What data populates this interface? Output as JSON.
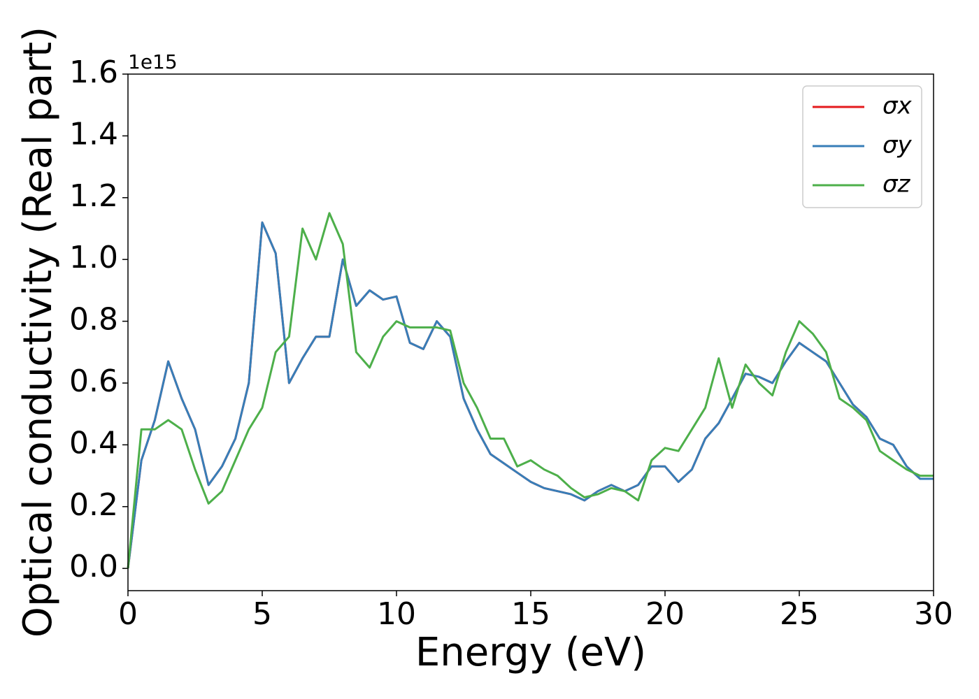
{
  "chart_data": {
    "type": "line",
    "xlabel": "Energy (eV)",
    "ylabel": "Optical conductivity (Real part)",
    "y_offset_label": "1e15",
    "x": [
      0,
      0.5,
      1,
      1.5,
      2,
      2.5,
      3,
      3.5,
      4,
      4.5,
      5,
      5.5,
      6,
      6.5,
      7,
      7.5,
      8,
      8.5,
      9,
      9.5,
      10,
      10.5,
      11,
      11.5,
      12,
      12.5,
      13,
      13.5,
      14,
      14.5,
      15,
      15.5,
      16,
      16.5,
      17,
      17.5,
      18,
      18.5,
      19,
      19.5,
      20,
      20.5,
      21,
      21.5,
      22,
      22.5,
      23,
      23.5,
      24,
      24.5,
      25,
      25.5,
      26,
      26.5,
      27,
      27.5,
      28,
      28.5,
      29,
      29.5,
      30
    ],
    "series": [
      {
        "name": "σx",
        "color": "#e41a1c",
        "values": [
          0,
          0.35,
          0.48,
          0.67,
          0.55,
          0.45,
          0.27,
          0.33,
          0.42,
          0.6,
          1.12,
          1.02,
          0.6,
          0.68,
          0.75,
          0.75,
          1.0,
          0.85,
          0.9,
          0.87,
          0.88,
          0.73,
          0.71,
          0.8,
          0.75,
          0.55,
          0.45,
          0.37,
          0.34,
          0.31,
          0.28,
          0.26,
          0.25,
          0.24,
          0.22,
          0.25,
          0.27,
          0.25,
          0.27,
          0.33,
          0.33,
          0.28,
          0.32,
          0.42,
          0.47,
          0.55,
          0.63,
          0.62,
          0.6,
          0.67,
          0.73,
          0.7,
          0.67,
          0.6,
          0.53,
          0.49,
          0.42,
          0.4,
          0.33,
          0.29,
          0.29
        ]
      },
      {
        "name": "σy",
        "color": "#377eb8",
        "values": [
          0,
          0.35,
          0.48,
          0.67,
          0.55,
          0.45,
          0.27,
          0.33,
          0.42,
          0.6,
          1.12,
          1.02,
          0.6,
          0.68,
          0.75,
          0.75,
          1.0,
          0.85,
          0.9,
          0.87,
          0.88,
          0.73,
          0.71,
          0.8,
          0.75,
          0.55,
          0.45,
          0.37,
          0.34,
          0.31,
          0.28,
          0.26,
          0.25,
          0.24,
          0.22,
          0.25,
          0.27,
          0.25,
          0.27,
          0.33,
          0.33,
          0.28,
          0.32,
          0.42,
          0.47,
          0.55,
          0.63,
          0.62,
          0.6,
          0.67,
          0.73,
          0.7,
          0.67,
          0.6,
          0.53,
          0.49,
          0.42,
          0.4,
          0.33,
          0.29,
          0.29
        ]
      },
      {
        "name": "σz",
        "color": "#4daf4a",
        "values": [
          0,
          0.45,
          0.45,
          0.48,
          0.45,
          0.32,
          0.21,
          0.25,
          0.35,
          0.45,
          0.52,
          0.7,
          0.75,
          1.1,
          1.0,
          1.15,
          1.05,
          0.7,
          0.65,
          0.75,
          0.8,
          0.78,
          0.78,
          0.78,
          0.77,
          0.6,
          0.52,
          0.42,
          0.42,
          0.33,
          0.35,
          0.32,
          0.3,
          0.26,
          0.23,
          0.24,
          0.26,
          0.25,
          0.22,
          0.35,
          0.39,
          0.38,
          0.45,
          0.52,
          0.68,
          0.52,
          0.66,
          0.6,
          0.56,
          0.7,
          0.8,
          0.76,
          0.7,
          0.55,
          0.52,
          0.48,
          0.38,
          0.35,
          0.32,
          0.3,
          0.3
        ]
      }
    ],
    "xlim": [
      0,
      30
    ],
    "xticks": [
      0,
      5,
      10,
      15,
      20,
      25,
      30
    ],
    "ylim": [
      -0.072,
      1.6
    ],
    "yticks": [
      {
        "value": 0,
        "label": "0.0"
      },
      0.2,
      0.4,
      0.6,
      0.8,
      {
        "value": 1,
        "label": "1.0"
      },
      1.2,
      1.4,
      1.6
    ],
    "legend": "upper right",
    "grid": false
  }
}
